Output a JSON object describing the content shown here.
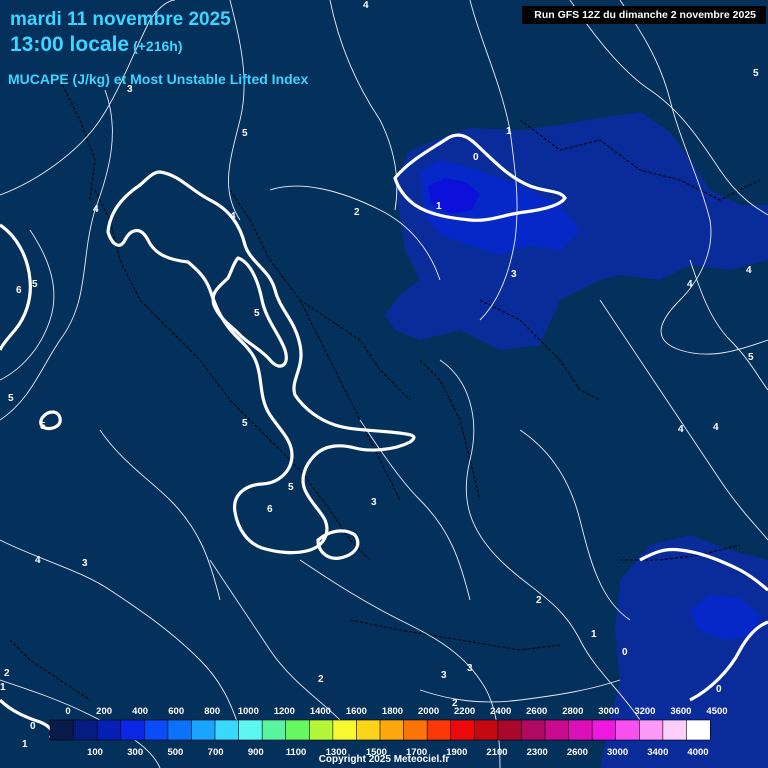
{
  "header": {
    "date": "mardi 11 novembre 2025",
    "time": "13:00 locale",
    "offset": "(+216h)",
    "parameter": "MUCAPE (J/kg) et Most Unstable Lifted Index",
    "run": "Run GFS 12Z du dimanche 2 novembre 2025"
  },
  "colorbar": {
    "top_ticks": [
      "0",
      "200",
      "400",
      "600",
      "800",
      "1000",
      "1200",
      "1400",
      "1600",
      "1800",
      "2000",
      "2200",
      "2400",
      "2600",
      "2800",
      "3000",
      "3200",
      "3600",
      "4500"
    ],
    "bottom_ticks": [
      "100",
      "300",
      "500",
      "700",
      "900",
      "1100",
      "1300",
      "1500",
      "1700",
      "1900",
      "2100",
      "2300",
      "2600",
      "3000",
      "3400",
      "4000"
    ],
    "colors": [
      "#0a1a4a",
      "#051c80",
      "#0620b4",
      "#0a28e6",
      "#0c4cf8",
      "#0a72fc",
      "#1aa4ff",
      "#38d8ff",
      "#5cf8f0",
      "#5af4a0",
      "#66f860",
      "#b2f838",
      "#f8f830",
      "#fcd418",
      "#fca80c",
      "#fc7408",
      "#fc3808",
      "#ec0a08",
      "#c40a10",
      "#a8082c",
      "#b00a60",
      "#c80a8c",
      "#dc10b8",
      "#ee18de",
      "#f850f0",
      "#fc98f6",
      "#fccefa",
      "#ffffff"
    ]
  },
  "map": {
    "colors": {
      "background": "#04305c",
      "cape_low": "#0a2c9a",
      "cape_mid": "#0628c8",
      "cape_high": "#0c10d8",
      "lifted_index": "#ffffff"
    },
    "contour_labels": [
      "4",
      "3",
      "5",
      "4",
      "5",
      "6",
      "5",
      "4",
      "2",
      "0",
      "1",
      "1",
      "5",
      "3",
      "4",
      "4",
      "5",
      "5",
      "5",
      "4",
      "4",
      "5",
      "6",
      "5",
      "3",
      "4",
      "3",
      "2",
      "1",
      "0",
      "0",
      "2",
      "3",
      "3",
      "2",
      "2",
      "1",
      "0",
      "1"
    ]
  },
  "copyright": "Copyright 2025 Meteociel.fr"
}
